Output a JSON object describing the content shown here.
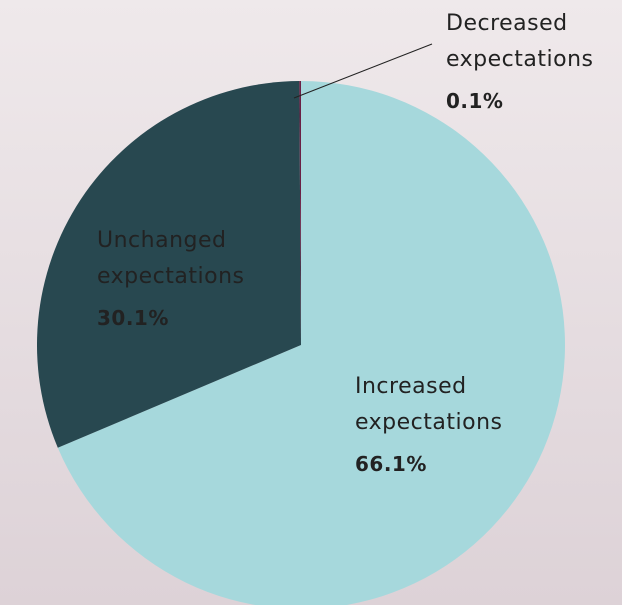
{
  "chart_data": {
    "type": "pie",
    "categories": [
      "Increased expectations",
      "Unchanged expectations",
      "Decreased expectations"
    ],
    "label_lines": [
      [
        "Increased",
        "expectations"
      ],
      [
        "Unchanged",
        "expectations"
      ],
      [
        "Decreased",
        "expectations"
      ]
    ],
    "values": [
      66.1,
      30.1,
      0.1
    ],
    "value_labels": [
      "66.1%",
      "30.1%",
      "0.1%"
    ],
    "colors": [
      "#a6d8dc",
      "#284850",
      "#6b1f45"
    ]
  }
}
